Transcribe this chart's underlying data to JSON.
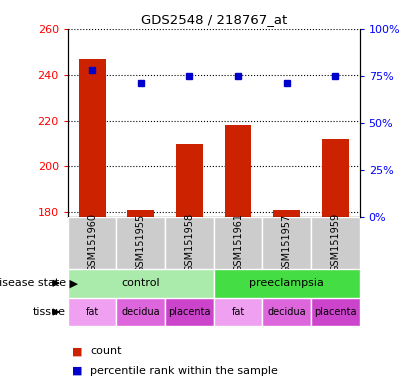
{
  "title": "GDS2548 / 218767_at",
  "samples": [
    "GSM151960",
    "GSM151955",
    "GSM151958",
    "GSM151961",
    "GSM151957",
    "GSM151959"
  ],
  "counts": [
    247,
    181,
    210,
    218,
    181,
    212
  ],
  "percentiles": [
    78,
    71,
    75,
    75,
    71,
    75
  ],
  "ylim_left": [
    178,
    260
  ],
  "ylim_right": [
    0,
    100
  ],
  "yticks_left": [
    180,
    200,
    220,
    240,
    260
  ],
  "yticks_right": [
    0,
    25,
    50,
    75,
    100
  ],
  "bar_color": "#cc2200",
  "dot_color": "#0000cc",
  "grid_color": "#000000",
  "disease_state": [
    {
      "label": "control",
      "span": [
        0,
        3
      ],
      "color": "#aaeaaa"
    },
    {
      "label": "preeclampsia",
      "span": [
        3,
        6
      ],
      "color": "#44dd44"
    }
  ],
  "tissue": [
    {
      "label": "fat",
      "span": [
        0,
        1
      ],
      "color": "#f0a0f0"
    },
    {
      "label": "decidua",
      "span": [
        1,
        2
      ],
      "color": "#dd66dd"
    },
    {
      "label": "placenta",
      "span": [
        2,
        3
      ],
      "color": "#cc44cc"
    },
    {
      "label": "fat",
      "span": [
        3,
        4
      ],
      "color": "#f0a0f0"
    },
    {
      "label": "decidua",
      "span": [
        4,
        5
      ],
      "color": "#dd66dd"
    },
    {
      "label": "placenta",
      "span": [
        5,
        6
      ],
      "color": "#cc44cc"
    }
  ],
  "legend_count_label": "count",
  "legend_pct_label": "percentile rank within the sample",
  "disease_state_label": "disease state",
  "tissue_label": "tissue",
  "bg_color": "#ffffff",
  "sample_bg_color": "#cccccc"
}
